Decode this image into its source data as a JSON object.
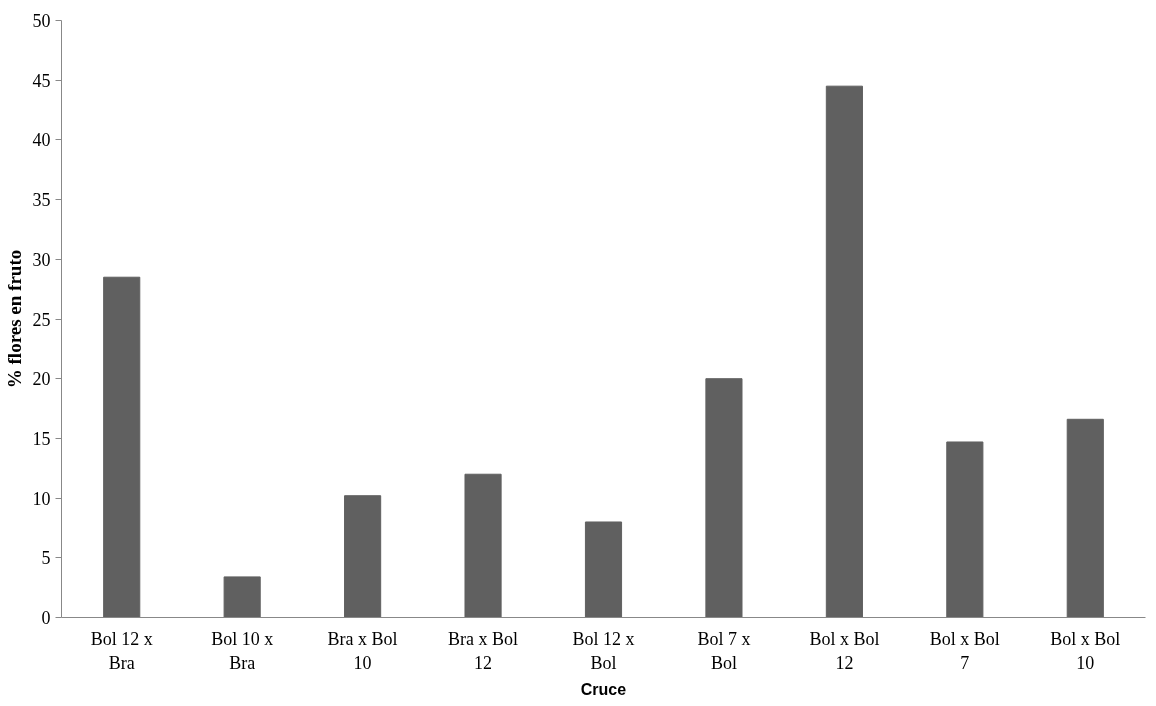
{
  "chart_data": {
    "type": "bar",
    "xlabel": "Cruce",
    "ylabel": "% flores en fruto",
    "categories": [
      "Bol 12 x Bra",
      "Bol 10 x Bra",
      "Bra x Bol 10",
      "Bra x Bol 12",
      "Bol 12 x Bol",
      "Bol 7 x Bol",
      "Bol x Bol 12",
      "Bol x Bol 7",
      "Bol x Bol 10"
    ],
    "values": [
      28.5,
      3.4,
      10.2,
      12.0,
      8.0,
      20.0,
      44.5,
      14.7,
      16.6
    ],
    "color": "#606060",
    "ylim": [
      0,
      50
    ],
    "yticks": [
      0,
      5,
      10,
      15,
      20,
      25,
      30,
      35,
      40,
      45,
      50
    ],
    "grid": false
  }
}
